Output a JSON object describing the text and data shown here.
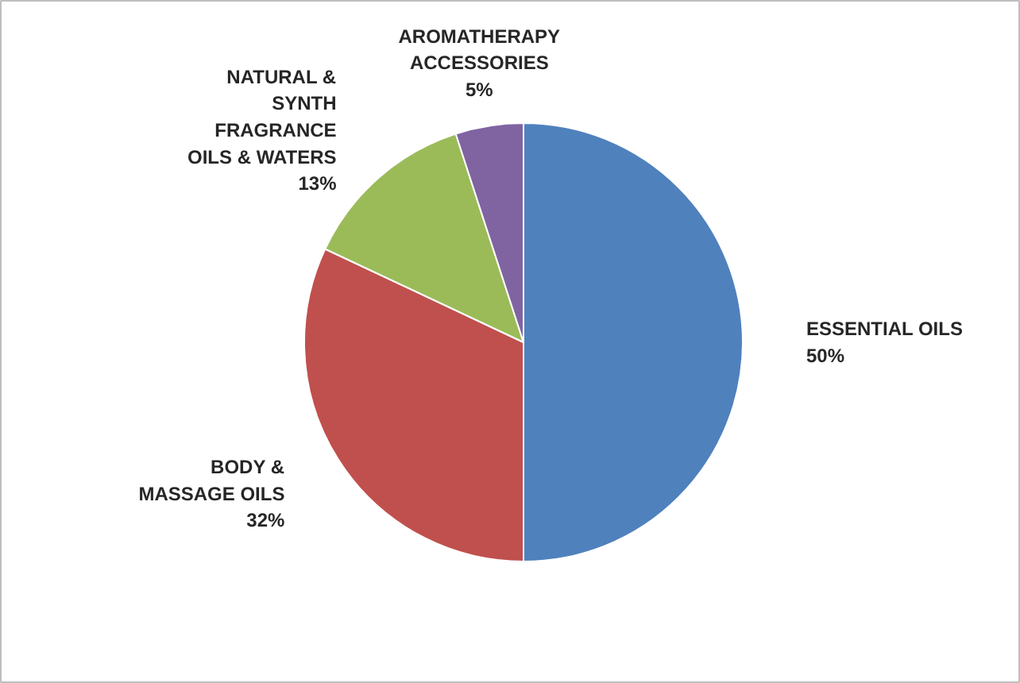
{
  "chart_data": {
    "type": "pie",
    "categories": [
      "ESSENTIAL OILS",
      "BODY &\nMASSAGE OILS",
      "NATURAL &\nSYNTH\nFRAGRANCE\nOILS & WATERS",
      "AROMATHERAPY\nACCESSORIES"
    ],
    "values": [
      50,
      32,
      13,
      5
    ],
    "colors": [
      "#4f81bd",
      "#c0504d",
      "#9bbb59",
      "#8064a2"
    ],
    "value_labels": [
      "50%",
      "32%",
      "13%",
      "5%"
    ]
  }
}
